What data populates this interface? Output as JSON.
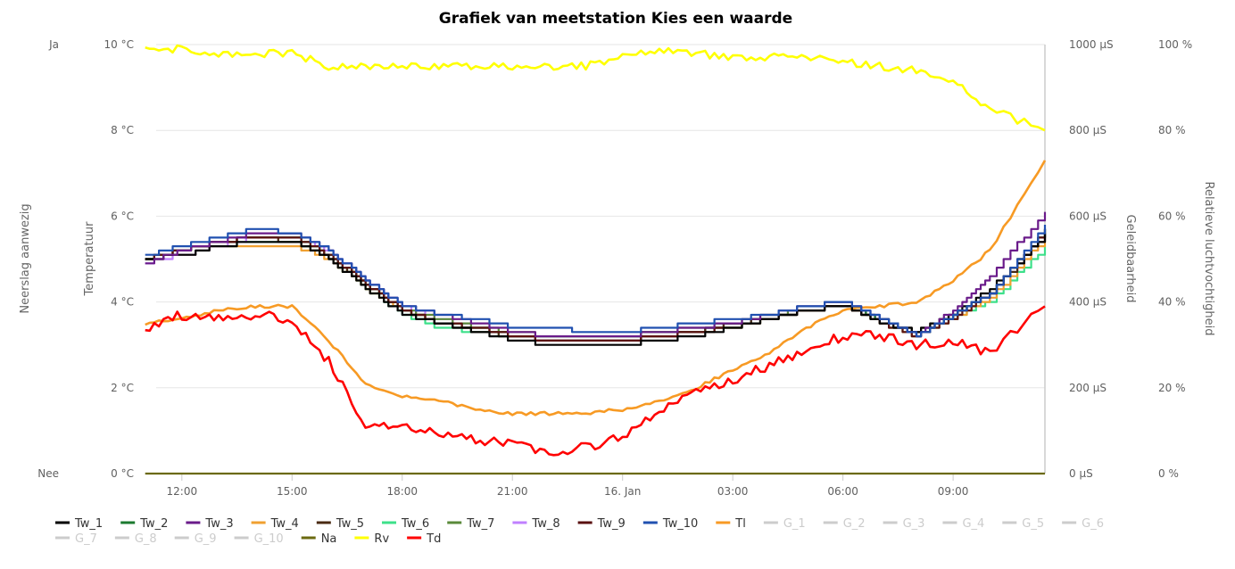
{
  "chart_data": {
    "type": "line",
    "title": "Grafiek van meetstation Kies een waarde",
    "axes": {
      "precip": {
        "title": "Neerslag aanwezig",
        "ticks": [
          "Nee",
          "Ja"
        ]
      },
      "temperature": {
        "title": "Temperatuur",
        "unit": "°C",
        "ylim": [
          0,
          10
        ],
        "ticks": [
          "0 °C",
          "2 °C",
          "4 °C",
          "6 °C",
          "8 °C",
          "10 °C"
        ]
      },
      "conductivity": {
        "title": "Geleidbaarheid",
        "unit": "µS",
        "ylim": [
          0,
          1000
        ],
        "ticks": [
          "0 µS",
          "200 µS",
          "400 µS",
          "600 µS",
          "800 µS",
          "1000 µS"
        ]
      },
      "humidity": {
        "title": "Relatieve luchtvochtigheid",
        "unit": "%",
        "ylim": [
          0,
          100
        ],
        "ticks": [
          "0 %",
          "20 %",
          "40 %",
          "60 %",
          "80 %",
          "100 %"
        ]
      }
    },
    "x_hours": [
      11,
      12,
      13,
      14,
      15,
      16,
      17,
      18,
      19,
      20,
      21,
      22,
      23,
      24,
      25,
      26,
      27,
      28,
      29,
      30,
      31,
      32,
      33,
      34,
      35.5
    ],
    "x_range": [
      11.3,
      35.5
    ],
    "x_ticks": [
      {
        "hour": 12,
        "label": "12:00"
      },
      {
        "hour": 15,
        "label": "15:00"
      },
      {
        "hour": 18,
        "label": "18:00"
      },
      {
        "hour": 21,
        "label": "21:00"
      },
      {
        "hour": 24,
        "label": "16. Jan"
      },
      {
        "hour": 27,
        "label": "03:00"
      },
      {
        "hour": 30,
        "label": "06:00"
      },
      {
        "hour": 33,
        "label": "09:00"
      }
    ],
    "series": [
      {
        "name": "Tw_1",
        "color": "#000000",
        "axis": "temperature",
        "visible": true,
        "values": [
          5.0,
          5.1,
          5.3,
          5.4,
          5.4,
          5.0,
          4.3,
          3.7,
          3.5,
          3.3,
          3.1,
          3.0,
          3.0,
          3.0,
          3.1,
          3.2,
          3.4,
          3.6,
          3.8,
          3.9,
          3.5,
          3.3,
          3.7,
          4.3,
          5.6
        ]
      },
      {
        "name": "Tw_2",
        "color": "#1b7a2f",
        "axis": "temperature",
        "visible": true,
        "values": [
          5.0,
          5.2,
          5.4,
          5.5,
          5.5,
          5.1,
          4.4,
          3.8,
          3.5,
          3.4,
          3.2,
          3.2,
          3.2,
          3.2,
          3.3,
          3.3,
          3.5,
          3.6,
          3.8,
          3.9,
          3.6,
          3.2,
          3.7,
          4.2,
          5.7
        ]
      },
      {
        "name": "Tw_3",
        "color": "#6a1b8a",
        "axis": "temperature",
        "visible": true,
        "values": [
          4.9,
          5.2,
          5.4,
          5.6,
          5.6,
          5.2,
          4.5,
          3.9,
          3.7,
          3.5,
          3.3,
          3.2,
          3.2,
          3.2,
          3.3,
          3.4,
          3.5,
          3.7,
          3.9,
          4.0,
          3.6,
          3.2,
          3.8,
          4.6,
          6.1
        ]
      },
      {
        "name": "Tw_4",
        "color": "#f0a030",
        "axis": "temperature",
        "visible": true,
        "values": [
          5.0,
          5.1,
          5.3,
          5.3,
          5.3,
          5.0,
          4.3,
          3.8,
          3.5,
          3.4,
          3.2,
          3.1,
          3.1,
          3.1,
          3.2,
          3.3,
          3.4,
          3.6,
          3.8,
          3.9,
          3.5,
          3.2,
          3.6,
          4.1,
          5.5
        ]
      },
      {
        "name": "Tw_5",
        "color": "#4a2a12",
        "axis": "temperature",
        "visible": true,
        "values": [
          5.0,
          5.2,
          5.4,
          5.5,
          5.4,
          5.0,
          4.4,
          3.8,
          3.5,
          3.3,
          3.2,
          3.1,
          3.1,
          3.1,
          3.2,
          3.3,
          3.5,
          3.6,
          3.8,
          3.9,
          3.5,
          3.3,
          3.7,
          4.2,
          5.6
        ]
      },
      {
        "name": "Tw_6",
        "color": "#3de08a",
        "axis": "temperature",
        "visible": true,
        "values": [
          5.0,
          5.1,
          5.3,
          5.4,
          5.4,
          5.0,
          4.3,
          3.7,
          3.4,
          3.3,
          3.2,
          3.1,
          3.1,
          3.1,
          3.2,
          3.3,
          3.4,
          3.6,
          3.8,
          3.9,
          3.5,
          3.2,
          3.6,
          4.0,
          5.3
        ]
      },
      {
        "name": "Tw_7",
        "color": "#5a8a3a",
        "axis": "temperature",
        "visible": true,
        "values": [
          5.0,
          5.2,
          5.4,
          5.5,
          5.5,
          5.1,
          4.4,
          3.8,
          3.6,
          3.4,
          3.3,
          3.2,
          3.2,
          3.2,
          3.3,
          3.4,
          3.5,
          3.7,
          3.8,
          3.9,
          3.6,
          3.2,
          3.7,
          4.2,
          5.7
        ]
      },
      {
        "name": "Tw_8",
        "color": "#c080ff",
        "axis": "temperature",
        "visible": true,
        "values": [
          4.9,
          5.1,
          5.3,
          5.5,
          5.5,
          5.2,
          4.5,
          3.9,
          3.6,
          3.4,
          3.2,
          3.1,
          3.1,
          3.1,
          3.2,
          3.3,
          3.5,
          3.6,
          3.8,
          3.9,
          3.6,
          3.2,
          3.7,
          4.2,
          5.6
        ]
      },
      {
        "name": "Tw_9",
        "color": "#5a1010",
        "axis": "temperature",
        "visible": true,
        "values": [
          5.0,
          5.2,
          5.4,
          5.5,
          5.5,
          5.1,
          4.4,
          3.8,
          3.5,
          3.4,
          3.2,
          3.1,
          3.1,
          3.1,
          3.2,
          3.3,
          3.4,
          3.6,
          3.8,
          3.9,
          3.5,
          3.2,
          3.6,
          4.2,
          5.7
        ]
      },
      {
        "name": "Tw_10",
        "color": "#2050b0",
        "axis": "temperature",
        "visible": true,
        "values": [
          5.1,
          5.3,
          5.5,
          5.7,
          5.6,
          5.2,
          4.5,
          3.9,
          3.7,
          3.6,
          3.4,
          3.4,
          3.3,
          3.3,
          3.4,
          3.5,
          3.6,
          3.7,
          3.9,
          4.0,
          3.6,
          3.2,
          3.7,
          4.2,
          5.8
        ]
      },
      {
        "name": "Tl",
        "color": "#f79a24",
        "axis": "temperature",
        "visible": true,
        "values": [
          3.5,
          3.6,
          3.8,
          3.9,
          3.9,
          3.1,
          2.1,
          1.8,
          1.7,
          1.5,
          1.4,
          1.4,
          1.4,
          1.5,
          1.7,
          2.0,
          2.4,
          2.8,
          3.4,
          3.8,
          3.9,
          4.0,
          4.5,
          5.2,
          7.3
        ]
      },
      {
        "name": "G_1",
        "color": "#cccccc",
        "visible": false,
        "values": []
      },
      {
        "name": "G_2",
        "color": "#cccccc",
        "visible": false,
        "values": []
      },
      {
        "name": "G_3",
        "color": "#cccccc",
        "visible": false,
        "values": []
      },
      {
        "name": "G_4",
        "color": "#cccccc",
        "visible": false,
        "values": []
      },
      {
        "name": "G_5",
        "color": "#cccccc",
        "visible": false,
        "values": []
      },
      {
        "name": "G_6",
        "color": "#cccccc",
        "visible": false,
        "values": []
      },
      {
        "name": "G_7",
        "color": "#cccccc",
        "visible": false,
        "values": []
      },
      {
        "name": "G_8",
        "color": "#cccccc",
        "visible": false,
        "values": []
      },
      {
        "name": "G_9",
        "color": "#cccccc",
        "visible": false,
        "values": []
      },
      {
        "name": "G_10",
        "color": "#cccccc",
        "visible": false,
        "values": []
      },
      {
        "name": "Na",
        "color": "#6b6a10",
        "axis": "precip",
        "visible": true,
        "values": [
          0,
          0,
          0,
          0,
          0,
          0,
          0,
          0,
          0,
          0,
          0,
          0,
          0,
          0,
          0,
          0,
          0,
          0,
          0,
          0,
          0,
          0,
          0,
          0,
          0
        ]
      },
      {
        "name": "Rv",
        "color": "#ffff00",
        "axis": "humidity",
        "visible": true,
        "values": [
          99,
          99,
          98,
          98,
          98,
          95,
          95,
          95,
          95,
          95,
          95,
          95,
          95,
          97,
          99,
          98,
          97,
          97,
          97,
          96,
          95,
          94,
          92,
          85,
          80
        ]
      },
      {
        "name": "Td",
        "color": "#ff0000",
        "axis": "temperature",
        "visible": true,
        "values": [
          3.4,
          3.7,
          3.6,
          3.7,
          3.6,
          2.6,
          1.1,
          1.1,
          0.9,
          0.8,
          0.7,
          0.5,
          0.6,
          0.9,
          1.4,
          1.9,
          2.2,
          2.5,
          2.9,
          3.2,
          3.2,
          3.0,
          3.1,
          2.8,
          3.9
        ]
      }
    ]
  }
}
